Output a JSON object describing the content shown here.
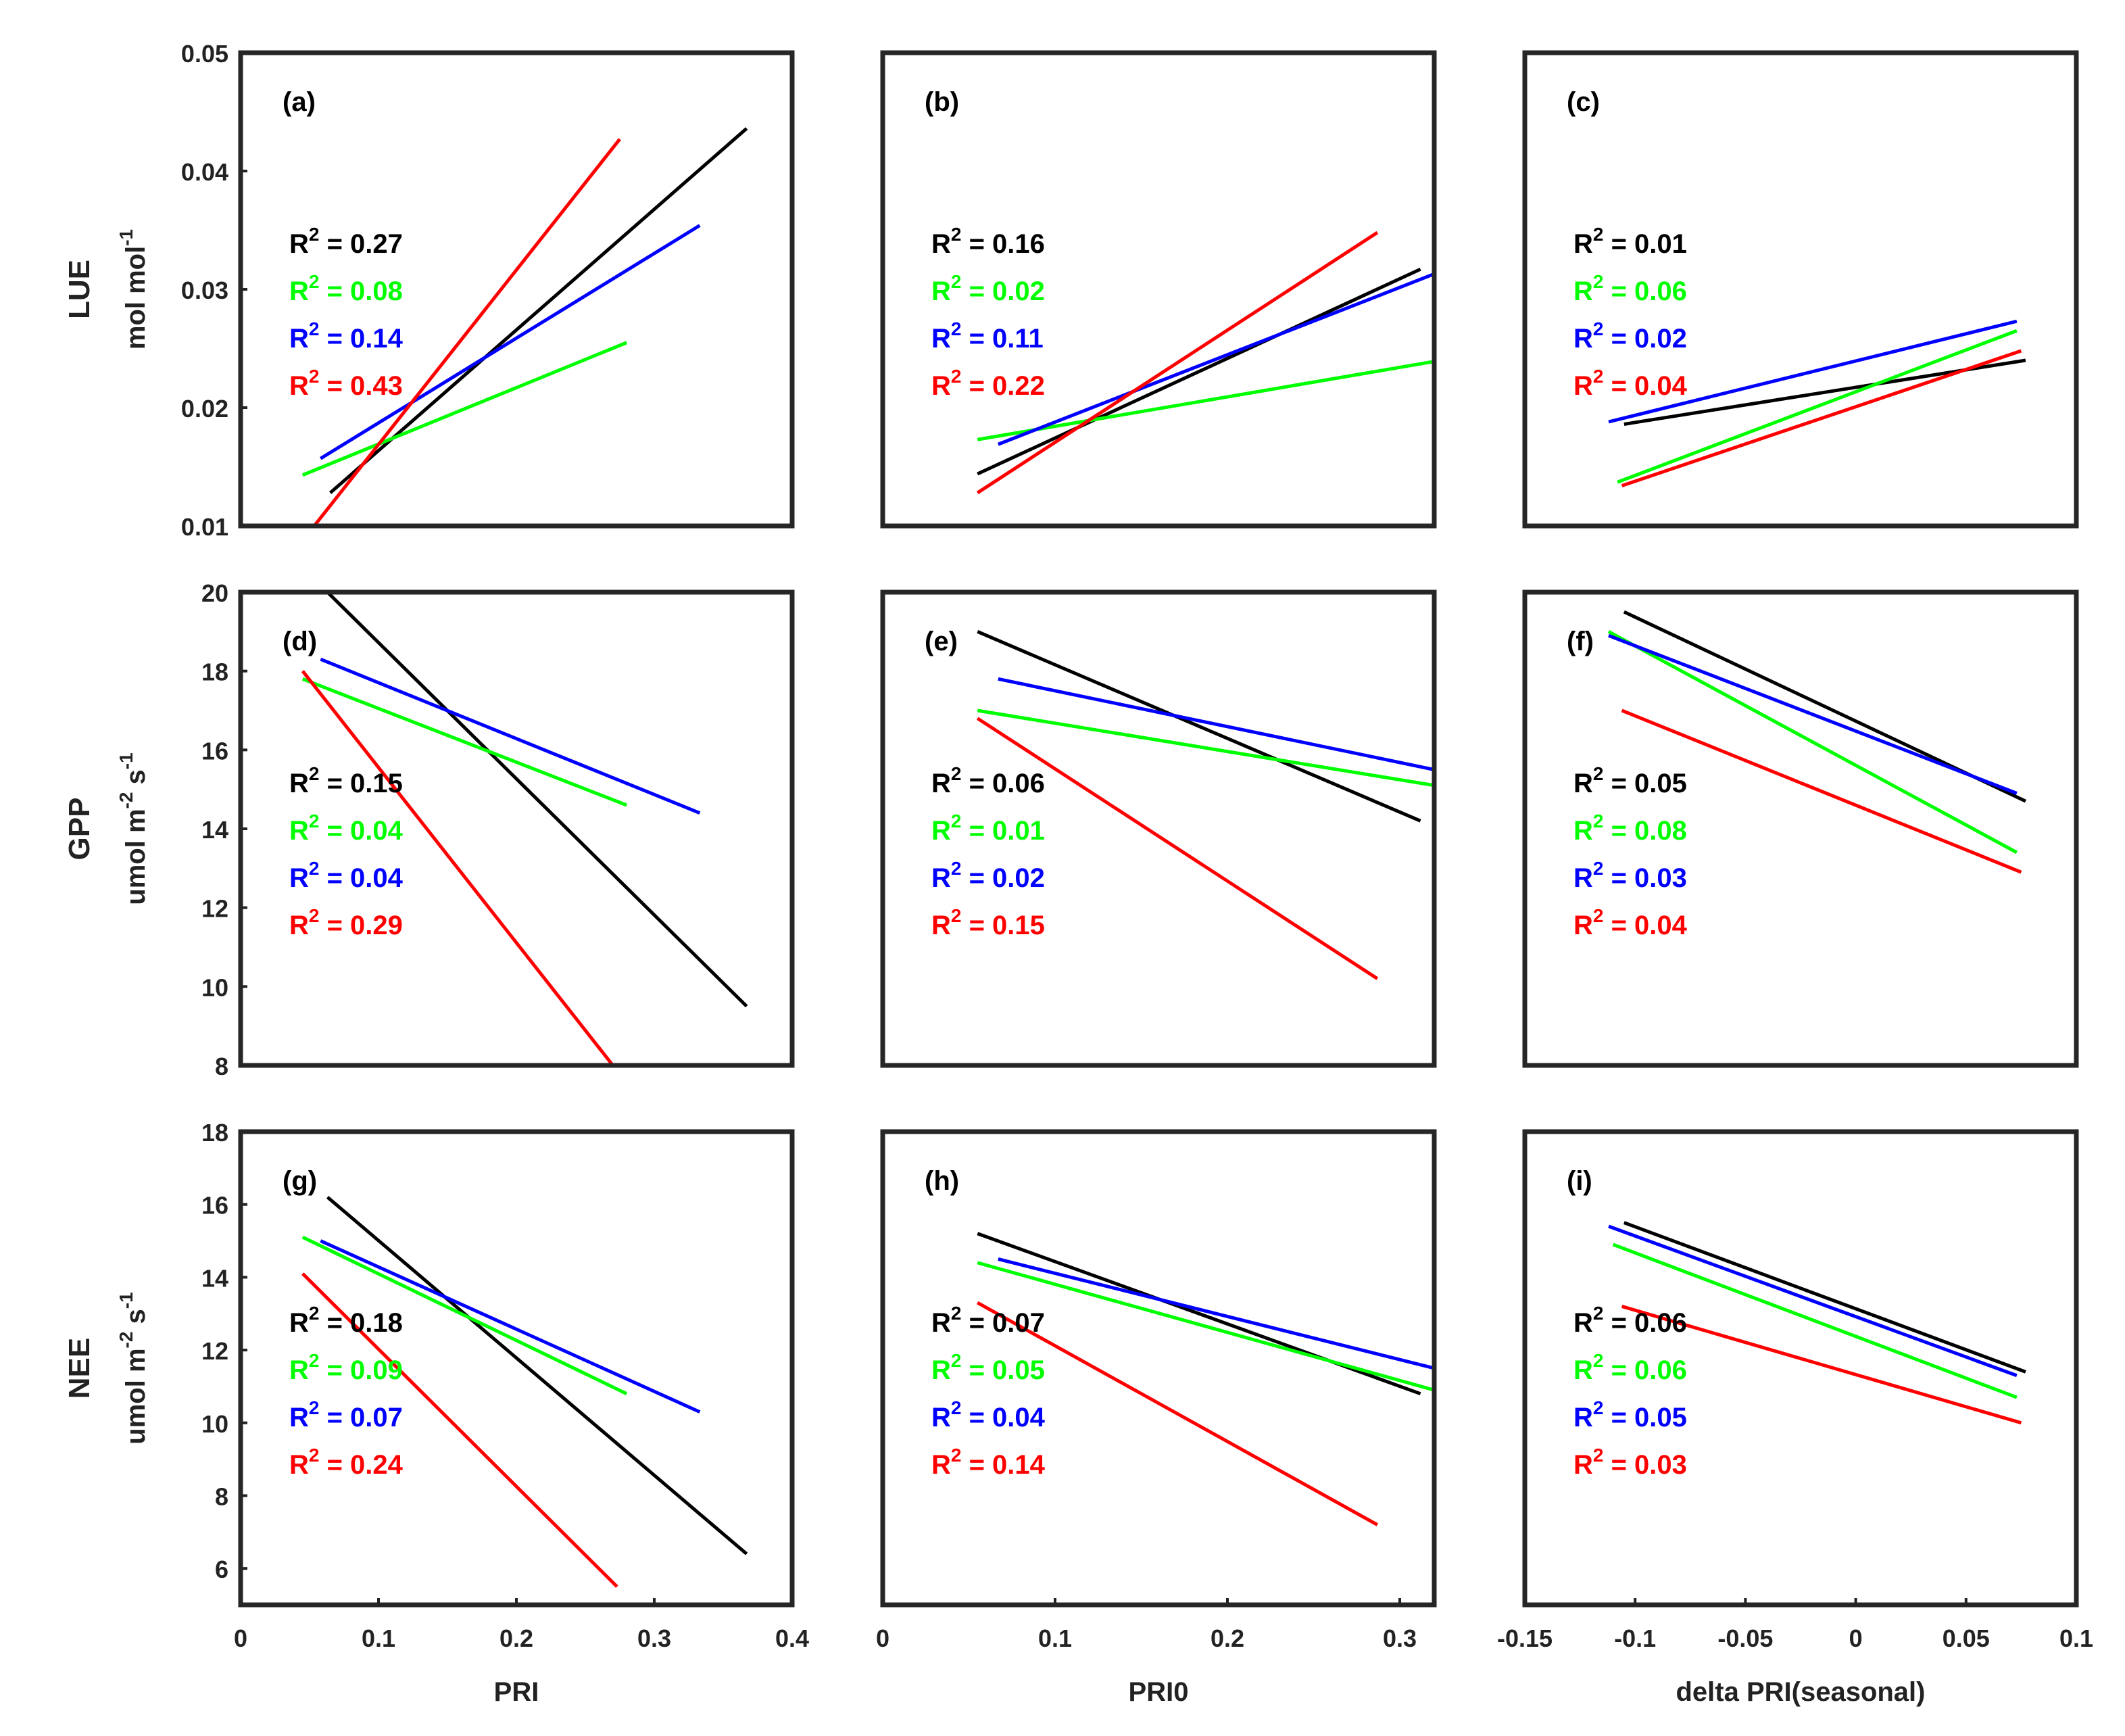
{
  "chart_data": [
    {
      "type": "line",
      "panel_label": "(a)",
      "xlim": [
        0,
        0.4
      ],
      "ylim": [
        0.01,
        0.05
      ],
      "yticks": [
        "0.01",
        "0.02",
        "0.03",
        "0.04",
        "0.05"
      ],
      "xlabel": "",
      "ylabel": "LUE",
      "yunit": "mol mol",
      "yunit_sup": "-1",
      "series": [
        {
          "name": "black",
          "color": "#000000",
          "x": [
            0.065,
            0.367
          ],
          "y": [
            0.0128,
            0.0436
          ],
          "r2": "R",
          "r2_sup": "2",
          "r2_text": " = 0.27"
        },
        {
          "name": "green",
          "color": "#00ff00",
          "x": [
            0.045,
            0.28
          ],
          "y": [
            0.0143,
            0.0255
          ],
          "r2": "R",
          "r2_sup": "2",
          "r2_text": " = 0.08"
        },
        {
          "name": "blue",
          "color": "#0000ff",
          "x": [
            0.058,
            0.333
          ],
          "y": [
            0.0157,
            0.0354
          ],
          "r2": "R",
          "r2_sup": "2",
          "r2_text": " = 0.14"
        },
        {
          "name": "red",
          "color": "#ff0000",
          "x": [
            0.052,
            0.275
          ],
          "y": [
            0.0098,
            0.0427
          ],
          "r2": "R",
          "r2_sup": "2",
          "r2_text": " = 0.43"
        }
      ]
    },
    {
      "type": "line",
      "panel_label": "(b)",
      "xlim": [
        0,
        0.32
      ],
      "ylim": [
        0.01,
        0.05
      ],
      "xlabel": "",
      "ylabel": "",
      "series": [
        {
          "name": "black",
          "color": "#000000",
          "x": [
            0.055,
            0.312
          ],
          "y": [
            0.0144,
            0.0317
          ],
          "r2": "R",
          "r2_sup": "2",
          "r2_text": " = 0.16"
        },
        {
          "name": "green",
          "color": "#00ff00",
          "x": [
            0.055,
            0.32
          ],
          "y": [
            0.0173,
            0.0239
          ],
          "r2": "R",
          "r2_sup": "2",
          "r2_text": " = 0.02"
        },
        {
          "name": "blue",
          "color": "#0000ff",
          "x": [
            0.067,
            0.32
          ],
          "y": [
            0.0169,
            0.0313
          ],
          "r2": "R",
          "r2_sup": "2",
          "r2_text": " = 0.11"
        },
        {
          "name": "red",
          "color": "#ff0000",
          "x": [
            0.055,
            0.287
          ],
          "y": [
            0.0128,
            0.0348
          ],
          "r2": "R",
          "r2_sup": "2",
          "r2_text": " = 0.22"
        }
      ]
    },
    {
      "type": "line",
      "panel_label": "(c)",
      "xlim": [
        -0.15,
        0.1
      ],
      "ylim": [
        0.01,
        0.05
      ],
      "xlabel": "",
      "ylabel": "",
      "series": [
        {
          "name": "black",
          "color": "#000000",
          "x": [
            -0.105,
            0.077
          ],
          "y": [
            0.0186,
            0.024
          ],
          "r2": "R",
          "r2_sup": "2",
          "r2_text": " = 0.01"
        },
        {
          "name": "green",
          "color": "#00ff00",
          "x": [
            -0.108,
            0.073
          ],
          "y": [
            0.0137,
            0.0265
          ],
          "r2": "R",
          "r2_sup": "2",
          "r2_text": " = 0.06"
        },
        {
          "name": "blue",
          "color": "#0000ff",
          "x": [
            -0.112,
            0.073
          ],
          "y": [
            0.0188,
            0.0273
          ],
          "r2": "R",
          "r2_sup": "2",
          "r2_text": " = 0.02"
        },
        {
          "name": "red",
          "color": "#ff0000",
          "x": [
            -0.106,
            0.075
          ],
          "y": [
            0.0134,
            0.0248
          ],
          "r2": "R",
          "r2_sup": "2",
          "r2_text": " = 0.04"
        }
      ]
    },
    {
      "type": "line",
      "panel_label": "(d)",
      "xlim": [
        0,
        0.4
      ],
      "ylim": [
        8,
        20
      ],
      "yticks": [
        "8",
        "10",
        "12",
        "14",
        "16",
        "18",
        "20"
      ],
      "xlabel": "",
      "ylabel": "GPP",
      "yunit": "umol m",
      "yunit_sup1": "-2",
      "yunit_mid": " s",
      "yunit_sup2": "-1",
      "series": [
        {
          "name": "black",
          "color": "#000000",
          "x": [
            0.063,
            0.367
          ],
          "y": [
            20.0,
            9.5
          ],
          "r2": "R",
          "r2_sup": "2",
          "r2_text": " = 0.15"
        },
        {
          "name": "green",
          "color": "#00ff00",
          "x": [
            0.045,
            0.28
          ],
          "y": [
            17.8,
            14.6
          ],
          "r2": "R",
          "r2_sup": "2",
          "r2_text": " = 0.04"
        },
        {
          "name": "blue",
          "color": "#0000ff",
          "x": [
            0.058,
            0.333
          ],
          "y": [
            18.3,
            14.4
          ],
          "r2": "R",
          "r2_sup": "2",
          "r2_text": " = 0.04"
        },
        {
          "name": "red",
          "color": "#ff0000",
          "x": [
            0.045,
            0.27
          ],
          "y": [
            18.0,
            8.0
          ],
          "r2": "R",
          "r2_sup": "2",
          "r2_text": " = 0.29"
        }
      ]
    },
    {
      "type": "line",
      "panel_label": "(e)",
      "xlim": [
        0,
        0.32
      ],
      "ylim": [
        8,
        20
      ],
      "xlabel": "",
      "ylabel": "",
      "series": [
        {
          "name": "black",
          "color": "#000000",
          "x": [
            0.055,
            0.312
          ],
          "y": [
            19.0,
            14.2
          ],
          "r2": "R",
          "r2_sup": "2",
          "r2_text": " = 0.06"
        },
        {
          "name": "green",
          "color": "#00ff00",
          "x": [
            0.055,
            0.32
          ],
          "y": [
            17.0,
            15.1
          ],
          "r2": "R",
          "r2_sup": "2",
          "r2_text": " = 0.01"
        },
        {
          "name": "blue",
          "color": "#0000ff",
          "x": [
            0.067,
            0.32
          ],
          "y": [
            17.8,
            15.5
          ],
          "r2": "R",
          "r2_sup": "2",
          "r2_text": " = 0.02"
        },
        {
          "name": "red",
          "color": "#ff0000",
          "x": [
            0.055,
            0.287
          ],
          "y": [
            16.8,
            10.2
          ],
          "r2": "R",
          "r2_sup": "2",
          "r2_text": " = 0.15"
        }
      ]
    },
    {
      "type": "line",
      "panel_label": "(f)",
      "xlim": [
        -0.15,
        0.1
      ],
      "ylim": [
        8,
        20
      ],
      "xlabel": "",
      "ylabel": "",
      "series": [
        {
          "name": "black",
          "color": "#000000",
          "x": [
            -0.105,
            0.077
          ],
          "y": [
            19.5,
            14.7
          ],
          "r2": "R",
          "r2_sup": "2",
          "r2_text": " = 0.05"
        },
        {
          "name": "green",
          "color": "#00ff00",
          "x": [
            -0.112,
            0.073
          ],
          "y": [
            19.0,
            13.4
          ],
          "r2": "R",
          "r2_sup": "2",
          "r2_text": " = 0.08"
        },
        {
          "name": "blue",
          "color": "#0000ff",
          "x": [
            -0.112,
            0.073
          ],
          "y": [
            18.9,
            14.9
          ],
          "r2": "R",
          "r2_sup": "2",
          "r2_text": " = 0.03"
        },
        {
          "name": "red",
          "color": "#ff0000",
          "x": [
            -0.106,
            0.075
          ],
          "y": [
            17.0,
            12.9
          ],
          "r2": "R",
          "r2_sup": "2",
          "r2_text": " = 0.04"
        }
      ]
    },
    {
      "type": "line",
      "panel_label": "(g)",
      "xlim": [
        0,
        0.4
      ],
      "ylim": [
        5,
        18
      ],
      "yticks": [
        "6",
        "8",
        "10",
        "12",
        "14",
        "16",
        "18"
      ],
      "xticks": [
        "0",
        "0.1",
        "0.2",
        "0.3",
        "0.4"
      ],
      "xlabel": "PRI",
      "ylabel": "NEE",
      "yunit": "umol m",
      "yunit_sup1": "-2",
      "yunit_mid": " s",
      "yunit_sup2": "-1",
      "series": [
        {
          "name": "black",
          "color": "#000000",
          "x": [
            0.063,
            0.367
          ],
          "y": [
            16.2,
            6.4
          ],
          "r2": "R",
          "r2_sup": "2",
          "r2_text": " = 0.18"
        },
        {
          "name": "green",
          "color": "#00ff00",
          "x": [
            0.045,
            0.28
          ],
          "y": [
            15.1,
            10.8
          ],
          "r2": "R",
          "r2_sup": "2",
          "r2_text": " = 0.09"
        },
        {
          "name": "blue",
          "color": "#0000ff",
          "x": [
            0.058,
            0.333
          ],
          "y": [
            15.0,
            10.3
          ],
          "r2": "R",
          "r2_sup": "2",
          "r2_text": " = 0.07"
        },
        {
          "name": "red",
          "color": "#ff0000",
          "x": [
            0.045,
            0.273
          ],
          "y": [
            14.1,
            5.5
          ],
          "r2": "R",
          "r2_sup": "2",
          "r2_text": " = 0.24"
        }
      ]
    },
    {
      "type": "line",
      "panel_label": "(h)",
      "xlim": [
        0,
        0.32
      ],
      "ylim": [
        5,
        18
      ],
      "xticks": [
        "0",
        "0.1",
        "0.2",
        "0.3"
      ],
      "xlabel": "PRI0",
      "ylabel": "",
      "series": [
        {
          "name": "black",
          "color": "#000000",
          "x": [
            0.055,
            0.312
          ],
          "y": [
            15.2,
            10.8
          ],
          "r2": "R",
          "r2_sup": "2",
          "r2_text": " = 0.07"
        },
        {
          "name": "green",
          "color": "#00ff00",
          "x": [
            0.055,
            0.32
          ],
          "y": [
            14.4,
            10.9
          ],
          "r2": "R",
          "r2_sup": "2",
          "r2_text": " = 0.05"
        },
        {
          "name": "blue",
          "color": "#0000ff",
          "x": [
            0.067,
            0.32
          ],
          "y": [
            14.5,
            11.5
          ],
          "r2": "R",
          "r2_sup": "2",
          "r2_text": " = 0.04"
        },
        {
          "name": "red",
          "color": "#ff0000",
          "x": [
            0.055,
            0.287
          ],
          "y": [
            13.3,
            7.2
          ],
          "r2": "R",
          "r2_sup": "2",
          "r2_text": " = 0.14"
        }
      ]
    },
    {
      "type": "line",
      "panel_label": "(i)",
      "xlim": [
        -0.15,
        0.1
      ],
      "ylim": [
        5,
        18
      ],
      "xticks": [
        "-0.15",
        "-0.1",
        "-0.05",
        "0",
        "0.05",
        "0.1"
      ],
      "xlabel": "delta PRI(seasonal)",
      "ylabel": "",
      "series": [
        {
          "name": "black",
          "color": "#000000",
          "x": [
            -0.105,
            0.077
          ],
          "y": [
            15.5,
            11.4
          ],
          "r2": "R",
          "r2_sup": "2",
          "r2_text": " = 0.06"
        },
        {
          "name": "green",
          "color": "#00ff00",
          "x": [
            -0.11,
            0.073
          ],
          "y": [
            14.9,
            10.7
          ],
          "r2": "R",
          "r2_sup": "2",
          "r2_text": " = 0.06"
        },
        {
          "name": "blue",
          "color": "#0000ff",
          "x": [
            -0.112,
            0.073
          ],
          "y": [
            15.4,
            11.3
          ],
          "r2": "R",
          "r2_sup": "2",
          "r2_text": " = 0.05"
        },
        {
          "name": "red",
          "color": "#ff0000",
          "x": [
            -0.106,
            0.075
          ],
          "y": [
            13.2,
            10.0
          ],
          "r2": "R",
          "r2_sup": "2",
          "r2_text": " = 0.03"
        }
      ]
    }
  ]
}
